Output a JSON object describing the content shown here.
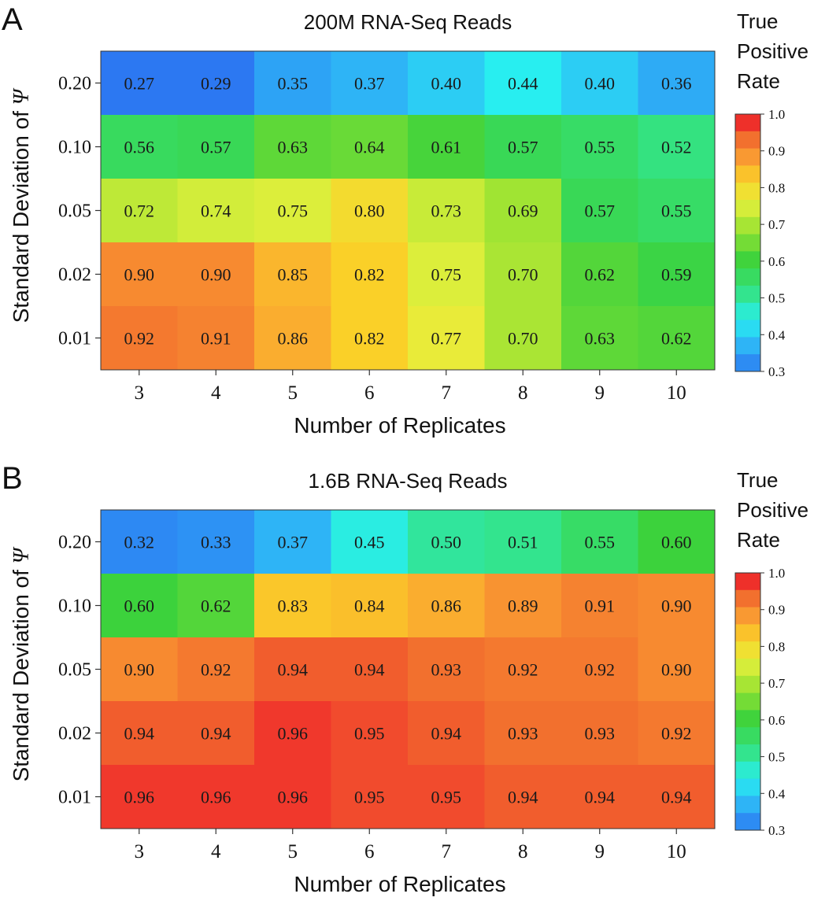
{
  "chart_data": [
    {
      "type": "heatmap",
      "panel_label": "A",
      "title": "200M RNA-Seq Reads",
      "xlabel": "Number of Replicates",
      "ylabel_text": "Standard Deviation of ",
      "ylabel_symbol": "Ψ",
      "x_categories": [
        "3",
        "4",
        "5",
        "6",
        "7",
        "8",
        "9",
        "10"
      ],
      "y_categories": [
        "0.20",
        "0.10",
        "0.05",
        "0.02",
        "0.01"
      ],
      "values": [
        [
          0.27,
          0.29,
          0.35,
          0.37,
          0.4,
          0.44,
          0.4,
          0.36
        ],
        [
          0.56,
          0.57,
          0.63,
          0.64,
          0.61,
          0.57,
          0.55,
          0.52
        ],
        [
          0.72,
          0.74,
          0.75,
          0.8,
          0.73,
          0.69,
          0.57,
          0.55
        ],
        [
          0.9,
          0.9,
          0.85,
          0.82,
          0.75,
          0.7,
          0.62,
          0.59
        ],
        [
          0.92,
          0.91,
          0.86,
          0.82,
          0.77,
          0.7,
          0.63,
          0.62
        ]
      ],
      "colorbar": {
        "title_lines": [
          "True",
          "Positive",
          "Rate"
        ],
        "range": [
          0.3,
          1.0
        ],
        "ticks": [
          "1.0",
          "0.9",
          "0.8",
          "0.7",
          "0.6",
          "0.5",
          "0.4",
          "0.3"
        ]
      }
    },
    {
      "type": "heatmap",
      "panel_label": "B",
      "title": "1.6B RNA-Seq Reads",
      "xlabel": "Number of Replicates",
      "ylabel_text": "Standard Deviation of ",
      "ylabel_symbol": "Ψ",
      "x_categories": [
        "3",
        "4",
        "5",
        "6",
        "7",
        "8",
        "9",
        "10"
      ],
      "y_categories": [
        "0.20",
        "0.10",
        "0.05",
        "0.02",
        "0.01"
      ],
      "values": [
        [
          0.32,
          0.33,
          0.37,
          0.45,
          0.5,
          0.51,
          0.55,
          0.6
        ],
        [
          0.6,
          0.62,
          0.83,
          0.84,
          0.86,
          0.89,
          0.91,
          0.9
        ],
        [
          0.9,
          0.92,
          0.94,
          0.94,
          0.93,
          0.92,
          0.92,
          0.9
        ],
        [
          0.94,
          0.94,
          0.96,
          0.95,
          0.94,
          0.93,
          0.93,
          0.92
        ],
        [
          0.96,
          0.96,
          0.96,
          0.95,
          0.95,
          0.94,
          0.94,
          0.94
        ]
      ],
      "colorbar": {
        "title_lines": [
          "True",
          "Positive",
          "Rate"
        ],
        "range": [
          0.3,
          1.0
        ],
        "ticks": [
          "1.0",
          "0.9",
          "0.8",
          "0.7",
          "0.6",
          "0.5",
          "0.4",
          "0.3"
        ]
      }
    }
  ]
}
